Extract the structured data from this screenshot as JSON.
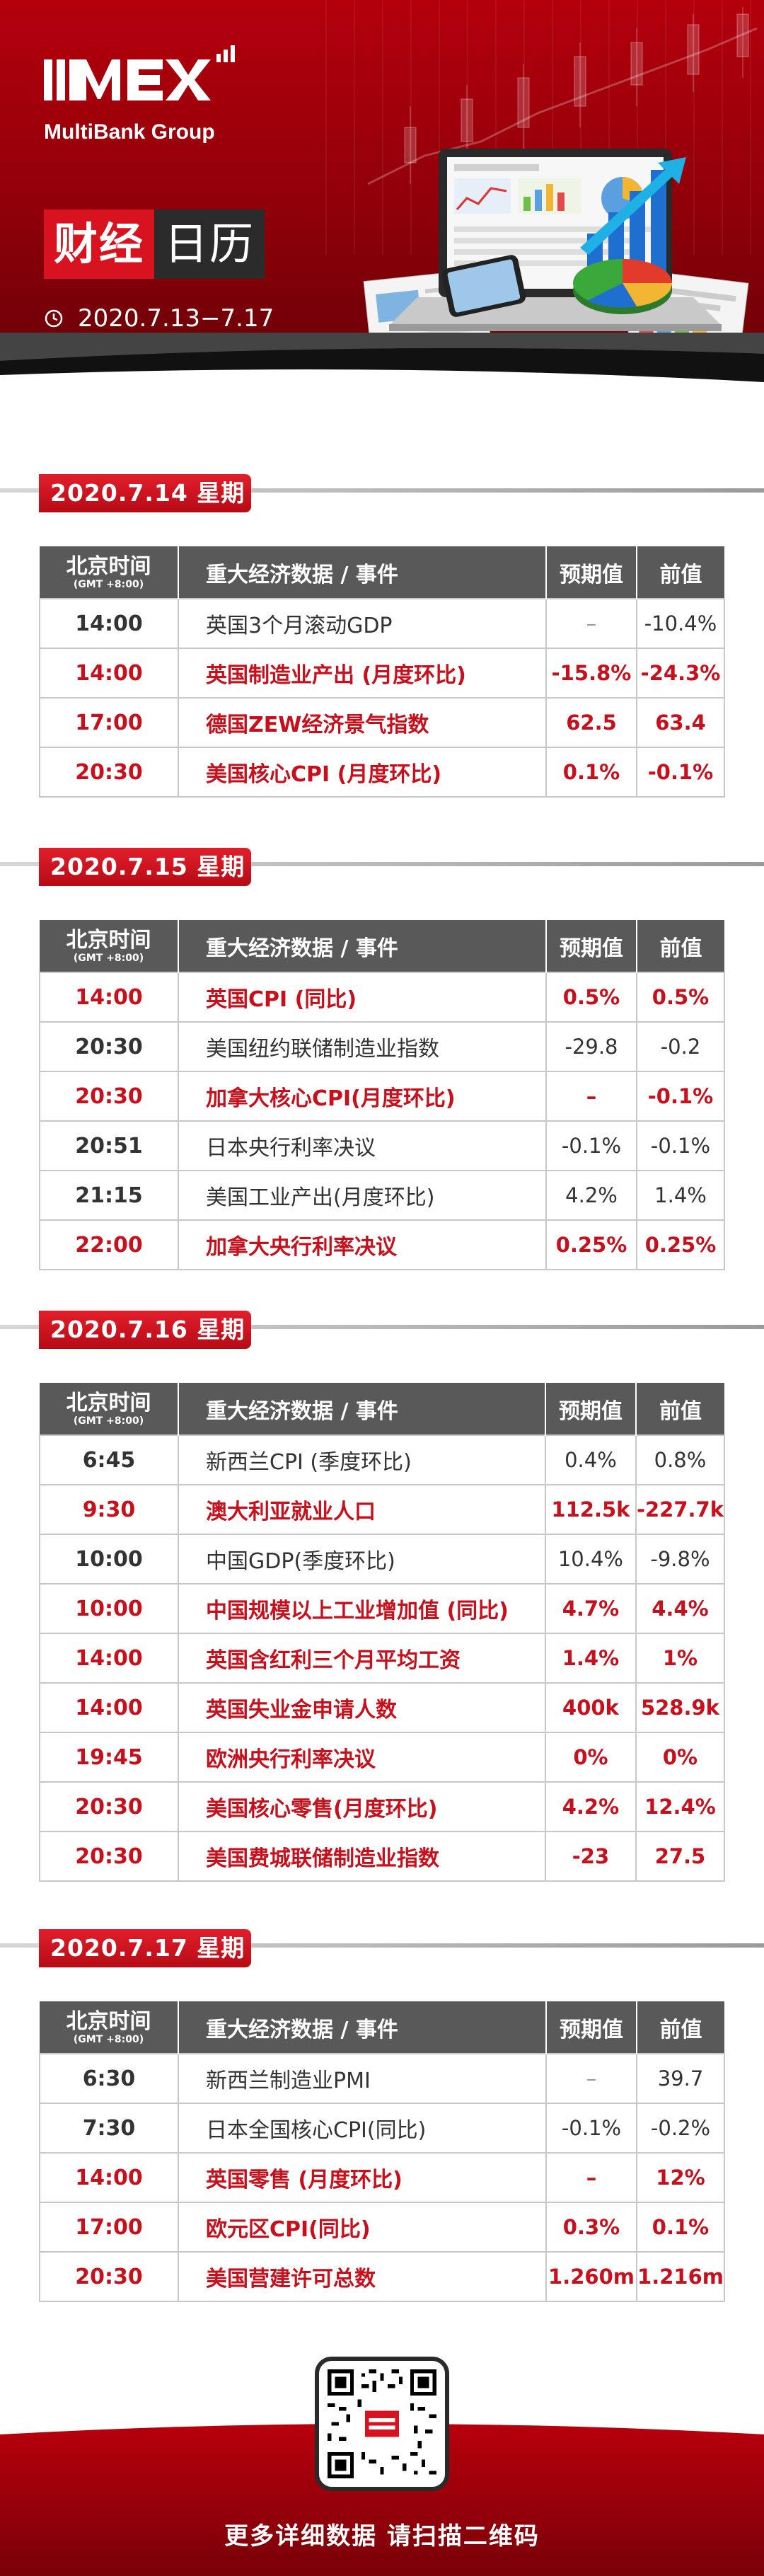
{
  "brand": {
    "logo_text": "MEX",
    "group_name": "MultiBank Group",
    "accent": "#d9121f",
    "dark": "#595959"
  },
  "title": {
    "part1": "财经",
    "part2": "日历",
    "date_range": "2020.7.13−7.17"
  },
  "table_header": {
    "time": "北京时间",
    "time_zone": "(GMT +8:00)",
    "event": "重大经济数据 / 事件",
    "expected": "预期值",
    "previous": "前值"
  },
  "days": [
    {
      "label": "2020.7.14  星期二",
      "rows": [
        {
          "time": "14:00",
          "event": "英国3个月滚动GDP",
          "expected": "–",
          "previous": "-10.4%",
          "highlight": false
        },
        {
          "time": "14:00",
          "event": "英国制造业产出 (月度环比)",
          "expected": "-15.8%",
          "previous": "-24.3%",
          "highlight": true
        },
        {
          "time": "17:00",
          "event": "德国ZEW经济景气指数",
          "expected": "62.5",
          "previous": "63.4",
          "highlight": true
        },
        {
          "time": "20:30",
          "event": "美国核心CPI (月度环比)",
          "expected": "0.1%",
          "previous": "-0.1%",
          "highlight": true
        }
      ]
    },
    {
      "label": "2020.7.15  星期三",
      "rows": [
        {
          "time": "14:00",
          "event": "英国CPI (同比)",
          "expected": "0.5%",
          "previous": "0.5%",
          "highlight": true
        },
        {
          "time": "20:30",
          "event": "美国纽约联储制造业指数",
          "expected": "-29.8",
          "previous": "-0.2",
          "highlight": false
        },
        {
          "time": "20:30",
          "event": "加拿大核心CPI(月度环比)",
          "expected": "–",
          "previous": "-0.1%",
          "highlight": true
        },
        {
          "time": "20:51",
          "event": "日本央行利率决议",
          "expected": "-0.1%",
          "previous": "-0.1%",
          "highlight": false
        },
        {
          "time": "21:15",
          "event": "美国工业产出(月度环比)",
          "expected": "4.2%",
          "previous": "1.4%",
          "highlight": false
        },
        {
          "time": "22:00",
          "event": "加拿大央行利率决议",
          "expected": "0.25%",
          "previous": "0.25%",
          "highlight": true
        }
      ]
    },
    {
      "label": "2020.7.16  星期四",
      "rows": [
        {
          "time": "6:45",
          "event": "新西兰CPI (季度环比)",
          "expected": "0.4%",
          "previous": "0.8%",
          "highlight": false
        },
        {
          "time": "9:30",
          "event": "澳大利亚就业人口",
          "expected": "112.5k",
          "previous": "-227.7k",
          "highlight": true
        },
        {
          "time": "10:00",
          "event": "中国GDP(季度环比)",
          "expected": "10.4%",
          "previous": "-9.8%",
          "highlight": false
        },
        {
          "time": "10:00",
          "event": "中国规模以上工业增加值 (同比)",
          "expected": "4.7%",
          "previous": "4.4%",
          "highlight": true
        },
        {
          "time": "14:00",
          "event": "英国含红利三个月平均工资",
          "expected": "1.4%",
          "previous": "1%",
          "highlight": true
        },
        {
          "time": "14:00",
          "event": "英国失业金申请人数",
          "expected": "400k",
          "previous": "528.9k",
          "highlight": true
        },
        {
          "time": "19:45",
          "event": "欧洲央行利率决议",
          "expected": "0%",
          "previous": "0%",
          "highlight": true
        },
        {
          "time": "20:30",
          "event": "美国核心零售(月度环比)",
          "expected": "4.2%",
          "previous": "12.4%",
          "highlight": true
        },
        {
          "time": "20:30",
          "event": "美国费城联储制造业指数",
          "expected": "-23",
          "previous": "27.5",
          "highlight": true
        }
      ]
    },
    {
      "label": "2020.7.17  星期五",
      "rows": [
        {
          "time": "6:30",
          "event": "新西兰制造业PMI",
          "expected": "–",
          "previous": "39.7",
          "highlight": false
        },
        {
          "time": "7:30",
          "event": "日本全国核心CPI(同比)",
          "expected": "-0.1%",
          "previous": "-0.2%",
          "highlight": false
        },
        {
          "time": "14:00",
          "event": "英国零售 (月度环比)",
          "expected": "–",
          "previous": "12%",
          "highlight": true
        },
        {
          "time": "17:00",
          "event": "欧元区CPI(同比)",
          "expected": "0.3%",
          "previous": "0.1%",
          "highlight": true
        },
        {
          "time": "20:30",
          "event": "美国营建许可总数",
          "expected": "1.260m",
          "previous": "1.216m",
          "highlight": true
        }
      ]
    }
  ],
  "footer": {
    "cta": "更多详细数据 请扫描二维码",
    "qr_icon": "qr-code-icon"
  }
}
